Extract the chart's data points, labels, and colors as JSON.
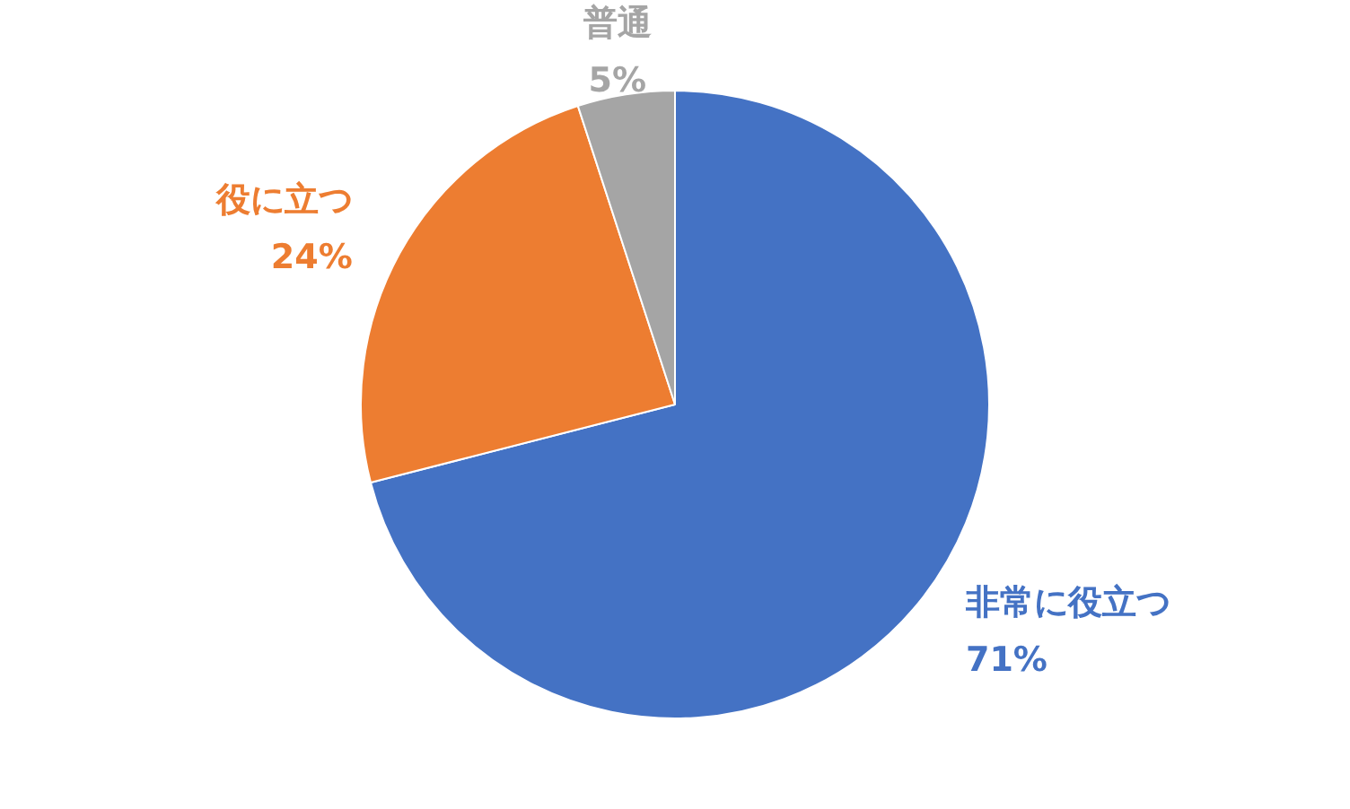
{
  "chart_data": {
    "type": "pie",
    "categories": [
      "非常に役立つ",
      "役に立つ",
      "普通"
    ],
    "values": [
      71,
      24,
      5
    ],
    "value_labels": [
      "71%",
      "24%",
      "5%"
    ],
    "colors": [
      "#4472c4",
      "#ed7d31",
      "#a5a5a5"
    ],
    "legend": false
  }
}
